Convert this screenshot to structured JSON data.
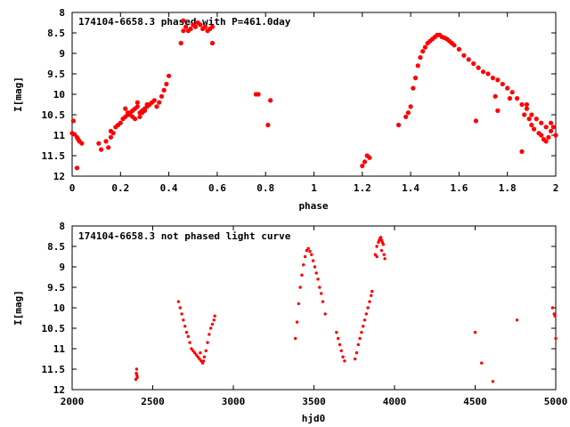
{
  "chart_data": [
    {
      "type": "scatter",
      "title": "174104-6658.3 phased with P=461.0day",
      "xlabel": "phase",
      "ylabel": "I[mag]",
      "xlim": [
        0,
        2
      ],
      "ylim": [
        12,
        8
      ],
      "y_inverted": true,
      "xticks": [
        "0",
        "0.2",
        "0.4",
        "0.6",
        "0.8",
        "1",
        "1.2",
        "1.4",
        "1.6",
        "1.8",
        "2"
      ],
      "yticks": [
        "8",
        "8.5",
        "9",
        "9.5",
        "10",
        "10.5",
        "11",
        "11.5",
        "12"
      ],
      "marker_color": "#ff0000",
      "grid": false,
      "series": [
        {
          "x": [
            0.0,
            0.005,
            0.01,
            0.02,
            0.025,
            0.03,
            0.04,
            0.02,
            0.11,
            0.12,
            0.14,
            0.15,
            0.16,
            0.16,
            0.17,
            0.18,
            0.19,
            0.2,
            0.21,
            0.22,
            0.23,
            0.24,
            0.25,
            0.25,
            0.26,
            0.27,
            0.28,
            0.29,
            0.3,
            0.31,
            0.32,
            0.33,
            0.34,
            0.35,
            0.36,
            0.37,
            0.38,
            0.39,
            0.4,
            0.22,
            0.24,
            0.26,
            0.28,
            0.29,
            0.3,
            0.31,
            0.23,
            0.27,
            0.45,
            0.46,
            0.47,
            0.48,
            0.49,
            0.5,
            0.51,
            0.52,
            0.53,
            0.54,
            0.55,
            0.56,
            0.57,
            0.58,
            0.46,
            0.58,
            0.76,
            0.77,
            0.81,
            0.82,
            1.2,
            1.21,
            1.22,
            1.23,
            1.35,
            1.38,
            1.39,
            1.4,
            1.41,
            1.42,
            1.43,
            1.44,
            1.45,
            1.46,
            1.47,
            1.48,
            1.49,
            1.5,
            1.51,
            1.52,
            1.53,
            1.54,
            1.55,
            1.56,
            1.57,
            1.58,
            1.6,
            1.62,
            1.64,
            1.66,
            1.68,
            1.7,
            1.72,
            1.74,
            1.76,
            1.78,
            1.8,
            1.82,
            1.84,
            1.86,
            1.88,
            1.9,
            1.92,
            1.94,
            1.96,
            1.98,
            2.0,
            1.87,
            1.9,
            1.93,
            1.95,
            1.97,
            1.99,
            1.89,
            1.91,
            1.94,
            1.96,
            1.98,
            1.75,
            1.81,
            1.86,
            1.88,
            1.67,
            1.76
          ],
          "y": [
            10.95,
            10.65,
            10.98,
            11.05,
            11.1,
            11.15,
            11.2,
            11.8,
            11.2,
            11.35,
            11.15,
            11.3,
            11.05,
            10.9,
            10.95,
            10.8,
            10.75,
            10.7,
            10.6,
            10.55,
            10.5,
            10.45,
            10.4,
            10.55,
            10.35,
            10.3,
            10.45,
            10.4,
            10.35,
            10.3,
            10.25,
            10.2,
            10.15,
            10.3,
            10.2,
            10.05,
            9.9,
            9.75,
            9.55,
            10.35,
            10.5,
            10.6,
            10.55,
            10.45,
            10.4,
            10.25,
            10.45,
            10.2,
            8.75,
            8.45,
            8.35,
            8.45,
            8.4,
            8.3,
            8.35,
            8.25,
            8.3,
            8.4,
            8.35,
            8.45,
            8.4,
            8.75,
            8.2,
            8.35,
            10.0,
            10.0,
            10.75,
            10.15,
            11.75,
            11.65,
            11.5,
            11.55,
            10.75,
            10.55,
            10.45,
            10.3,
            9.85,
            9.6,
            9.3,
            9.1,
            8.95,
            8.85,
            8.75,
            8.7,
            8.65,
            8.6,
            8.55,
            8.55,
            8.6,
            8.62,
            8.65,
            8.7,
            8.75,
            8.8,
            8.9,
            9.05,
            9.15,
            9.25,
            9.35,
            9.45,
            9.5,
            9.6,
            9.65,
            9.75,
            9.85,
            9.95,
            10.1,
            10.25,
            10.35,
            10.5,
            10.6,
            10.7,
            10.8,
            10.9,
            11.0,
            10.5,
            10.75,
            10.95,
            11.1,
            11.05,
            10.8,
            10.6,
            10.85,
            11.0,
            11.15,
            10.7,
            10.05,
            10.1,
            11.4,
            10.25,
            10.65,
            10.4
          ]
        }
      ]
    },
    {
      "type": "scatter",
      "title": "174104-6658.3 not phased light curve",
      "xlabel": "hjd0",
      "ylabel": "I[mag]",
      "xlim": [
        2000,
        5000
      ],
      "ylim": [
        12,
        8
      ],
      "y_inverted": true,
      "xticks": [
        "2000",
        "2500",
        "3000",
        "3500",
        "4000",
        "4500",
        "5000"
      ],
      "yticks": [
        "8",
        "8.5",
        "9",
        "9.5",
        "10",
        "10.5",
        "11",
        "11.5",
        "12"
      ],
      "marker_color": "#ff0000",
      "grid": false,
      "series": [
        {
          "x": [
            2395,
            2398,
            2400,
            2402,
            2404,
            2660,
            2670,
            2680,
            2690,
            2700,
            2710,
            2720,
            2730,
            2740,
            2750,
            2760,
            2770,
            2780,
            2790,
            2800,
            2810,
            2820,
            2830,
            2840,
            2850,
            2860,
            2870,
            2880,
            2885,
            2815,
            2795,
            3385,
            3395,
            3405,
            3415,
            3425,
            3435,
            3445,
            3455,
            3465,
            3475,
            3485,
            3495,
            3505,
            3515,
            3525,
            3535,
            3545,
            3555,
            3570,
            3640,
            3650,
            3660,
            3670,
            3680,
            3690,
            3755,
            3765,
            3775,
            3785,
            3795,
            3805,
            3815,
            3825,
            3835,
            3845,
            3855,
            3860,
            3880,
            3890,
            3900,
            3905,
            3910,
            3915,
            3920,
            3925,
            3930,
            3935,
            3940,
            3890,
            3920,
            4500,
            4540,
            4610,
            4760,
            4980,
            4990,
            5000,
            4995
          ],
          "y": [
            11.75,
            11.6,
            11.5,
            11.65,
            11.7,
            9.85,
            10.0,
            10.15,
            10.3,
            10.45,
            10.6,
            10.7,
            10.85,
            11.0,
            11.05,
            11.1,
            11.15,
            11.2,
            11.25,
            11.3,
            11.35,
            11.2,
            11.05,
            10.85,
            10.65,
            10.5,
            10.4,
            10.3,
            10.2,
            11.3,
            11.1,
            10.75,
            10.35,
            9.9,
            9.5,
            9.2,
            8.95,
            8.75,
            8.6,
            8.55,
            8.62,
            8.7,
            8.85,
            9.0,
            9.15,
            9.3,
            9.5,
            9.65,
            9.85,
            10.15,
            10.6,
            10.75,
            10.9,
            11.05,
            11.2,
            11.3,
            11.25,
            11.1,
            10.9,
            10.75,
            10.6,
            10.45,
            10.3,
            10.15,
            10.0,
            9.85,
            9.7,
            9.6,
            8.7,
            8.5,
            8.4,
            8.35,
            8.3,
            8.28,
            8.35,
            8.4,
            8.45,
            8.7,
            8.8,
            8.75,
            8.6,
            10.6,
            11.35,
            11.8,
            10.3,
            10.0,
            10.15,
            10.75,
            10.2
          ]
        }
      ]
    }
  ]
}
